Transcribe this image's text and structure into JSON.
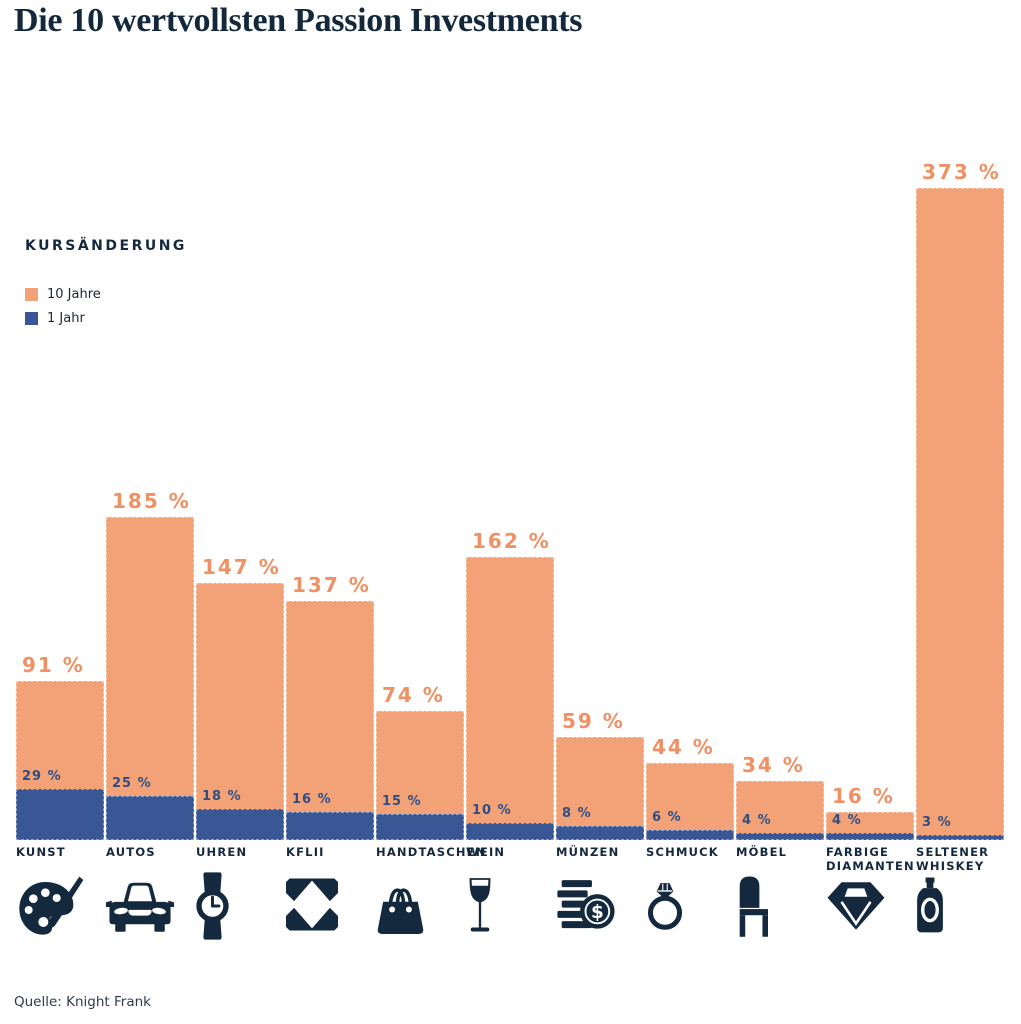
{
  "title": "Die 10 wertvollsten Passion Investments",
  "source": "Quelle: Knight Frank",
  "legend": {
    "title": "KURSÄNDERUNG",
    "items": [
      {
        "label": "10 Jahre",
        "color": "#F2A276"
      },
      {
        "label": "1 Jahr",
        "color": "#3A5795"
      }
    ]
  },
  "colors": {
    "navy": "#14293E",
    "bar_10y": "#F2A276",
    "bar_1y": "#3A5795",
    "label_10y": "#EF9164",
    "label_1y": "#2F4E86"
  },
  "chart_data": {
    "type": "bar",
    "title": "Die 10 wertvollsten Passion Investments",
    "subtitle": "KURSÄNDERUNG",
    "unit": "%",
    "grid": false,
    "legend_position": "upper-left",
    "bar_style": "overlapping",
    "ylim": [
      0,
      373
    ],
    "categories": [
      "KUNST",
      "AUTOS",
      "UHREN",
      "KFLII",
      "HANDTASCHEN",
      "WEIN",
      "MÜNZEN",
      "SCHMUCK",
      "MÖBEL",
      "FARBIGE\nDIAMANTEN",
      "SELTENER\nWHISKEY"
    ],
    "icons": [
      "palette-icon",
      "car-icon",
      "watch-icon",
      "kflii-icon",
      "handbag-icon",
      "wine-glass-icon",
      "coins-icon",
      "ring-icon",
      "chair-icon",
      "diamond-icon",
      "whiskey-bottle-icon"
    ],
    "series": [
      {
        "name": "10 Jahre",
        "values": [
          91,
          185,
          147,
          137,
          74,
          162,
          59,
          44,
          34,
          16,
          373
        ]
      },
      {
        "name": "1 Jahr",
        "values": [
          29,
          25,
          18,
          16,
          15,
          10,
          8,
          6,
          4,
          4,
          3
        ]
      }
    ]
  }
}
